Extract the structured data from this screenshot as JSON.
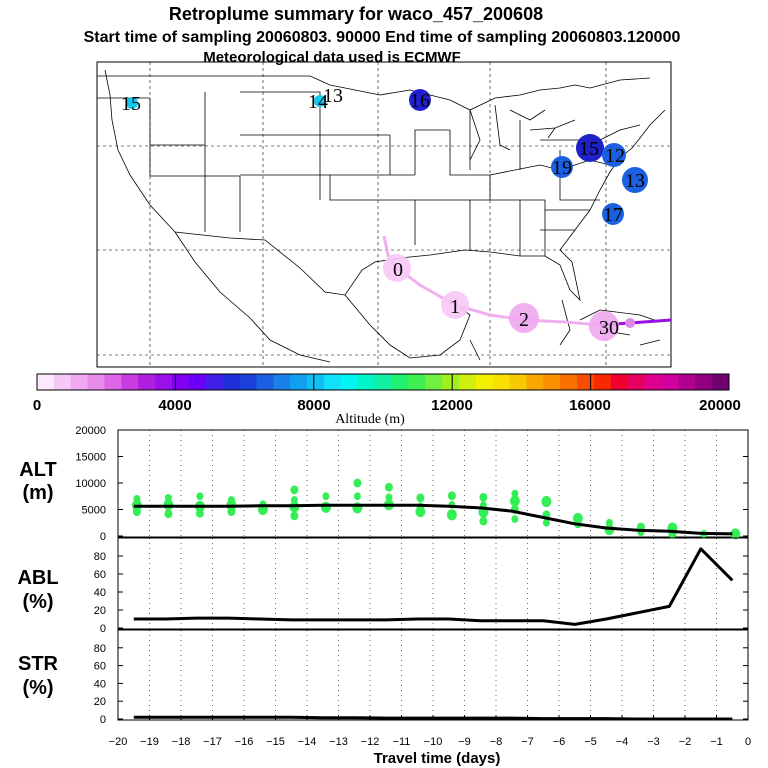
{
  "titles": {
    "line1": "Retroplume summary for waco_457_200608",
    "line2": "Start time of sampling 20060803. 90000     End time of sampling 20060803.120000",
    "line3": "Meteorological data used is ECMWF"
  },
  "colorbar": {
    "ticks": [
      "0",
      "4000",
      "8000",
      "12000",
      "16000",
      "20000"
    ],
    "label": "Altitude (m)",
    "colors": [
      "#fde8fd",
      "#f7c8f7",
      "#f0a8f0",
      "#e88be8",
      "#dd66e6",
      "#c93ce0",
      "#b01fe0",
      "#9a10e8",
      "#8000f0",
      "#6a00f5",
      "#4020e8",
      "#2030d8",
      "#1a40d8",
      "#1a60e0",
      "#1a80ea",
      "#10a0f0",
      "#10c0f5",
      "#10e0f8",
      "#00f5f0",
      "#00f5c8",
      "#10f0a0",
      "#20f070",
      "#40f050",
      "#70f040",
      "#a0f020",
      "#d0f010",
      "#f0f000",
      "#f8e000",
      "#f8c800",
      "#f8a800",
      "#f89000",
      "#f87000",
      "#f84c00",
      "#f82800",
      "#f00030",
      "#e80060",
      "#e00090",
      "#d000a0",
      "#b00090",
      "#900080",
      "#700070"
    ]
  },
  "map": {
    "track_labels": [
      "0",
      "1",
      "2",
      "3"
    ],
    "cluster_labels": [
      "15",
      "14",
      "13",
      "16",
      "19",
      "15",
      "12",
      "13",
      "17"
    ]
  },
  "chart_data": [
    {
      "type": "line",
      "panel": "ALT",
      "ylabel": "ALT\n(m)",
      "ylabel_line1": "ALT",
      "ylabel_line2": "(m)",
      "ylim": [
        0,
        20000
      ],
      "yticks": [
        "0",
        "5000",
        "10000",
        "15000",
        "20000"
      ],
      "x": [
        -19.5,
        -18.5,
        -17.5,
        -16.5,
        -15.5,
        -14.5,
        -13.5,
        -12.5,
        -11.5,
        -10.5,
        -9.5,
        -8.5,
        -7.5,
        -6.5,
        -5.5,
        -4.5,
        -3.5,
        -2.5,
        -1.5,
        -0.5
      ],
      "median": [
        5600,
        5600,
        5600,
        5600,
        5700,
        5700,
        5800,
        5800,
        5800,
        5800,
        5600,
        5300,
        4700,
        3500,
        2300,
        1500,
        1100,
        900,
        500,
        400
      ],
      "scatter_color": "#33ee55",
      "scatter": [
        [
          -19.4,
          7000
        ],
        [
          -19.4,
          5800
        ],
        [
          -19.4,
          4600
        ],
        [
          -18.4,
          7200
        ],
        [
          -18.4,
          5900
        ],
        [
          -18.4,
          4200
        ],
        [
          -17.4,
          7500
        ],
        [
          -17.4,
          5600
        ],
        [
          -17.4,
          4300
        ],
        [
          -16.4,
          6800
        ],
        [
          -16.4,
          5800
        ],
        [
          -16.4,
          4600
        ],
        [
          -15.4,
          6000
        ],
        [
          -15.4,
          5000
        ],
        [
          -14.4,
          8700
        ],
        [
          -14.4,
          6800
        ],
        [
          -14.4,
          5500
        ],
        [
          -14.4,
          3800
        ],
        [
          -13.4,
          7500
        ],
        [
          -13.4,
          5400
        ],
        [
          -12.4,
          10000
        ],
        [
          -12.4,
          7500
        ],
        [
          -12.4,
          5300
        ],
        [
          -11.4,
          9200
        ],
        [
          -11.4,
          7300
        ],
        [
          -11.4,
          5900
        ],
        [
          -10.4,
          7200
        ],
        [
          -10.4,
          5600
        ],
        [
          -10.4,
          4600
        ],
        [
          -9.4,
          7600
        ],
        [
          -9.4,
          5900
        ],
        [
          -9.4,
          4000
        ],
        [
          -8.4,
          7300
        ],
        [
          -8.4,
          5800
        ],
        [
          -8.4,
          4500
        ],
        [
          -8.4,
          2800
        ],
        [
          -7.4,
          8000
        ],
        [
          -7.4,
          6600
        ],
        [
          -7.4,
          5000
        ],
        [
          -7.4,
          3200
        ],
        [
          -6.4,
          6500
        ],
        [
          -6.4,
          4000
        ],
        [
          -6.4,
          2500
        ],
        [
          -5.4,
          3300
        ],
        [
          -5.4,
          2300
        ],
        [
          -4.4,
          2500
        ],
        [
          -4.4,
          1200
        ],
        [
          -3.4,
          1700
        ],
        [
          -3.4,
          700
        ],
        [
          -2.4,
          1500
        ],
        [
          -2.4,
          400
        ],
        [
          -1.4,
          400
        ],
        [
          -0.4,
          400
        ]
      ]
    },
    {
      "type": "line",
      "panel": "ABL",
      "ylabel": "ABL\n(%)",
      "ylabel_line1": "ABL",
      "ylabel_line2": "(%)",
      "ylim": [
        0,
        100
      ],
      "yticks": [
        "0",
        "20",
        "40",
        "60",
        "80"
      ],
      "x": [
        -19.5,
        -18.5,
        -17.5,
        -16.5,
        -15.5,
        -14.5,
        -13.5,
        -12.5,
        -11.5,
        -10.5,
        -9.5,
        -8.5,
        -7.5,
        -6.5,
        -5.5,
        -4.5,
        -3.5,
        -2.5,
        -1.5,
        -0.5
      ],
      "values": [
        10,
        10,
        11,
        11,
        10,
        9,
        9,
        9,
        9,
        10,
        10,
        8,
        8,
        8,
        4,
        10,
        17,
        24,
        88,
        53
      ]
    },
    {
      "type": "line",
      "panel": "STR",
      "ylabel": "STR\n(%)",
      "ylabel_line1": "STR",
      "ylabel_line2": "(%)",
      "ylim": [
        0,
        100
      ],
      "yticks": [
        "0",
        "20",
        "40",
        "60",
        "80"
      ],
      "xlabel": "Travel time (days)",
      "xlim": [
        -20,
        0
      ],
      "xticks": [
        "−20",
        "−19",
        "−18",
        "−17",
        "−16",
        "−15",
        "−14",
        "−13",
        "−12",
        "−11",
        "−10",
        "−9",
        "−8",
        "−7",
        "−6",
        "−5",
        "−4",
        "−3",
        "−2",
        "−1",
        "0"
      ],
      "x": [
        -19.5,
        -18.5,
        -17.5,
        -16.5,
        -15.5,
        -14.5,
        -13.5,
        -12.5,
        -11.5,
        -10.5,
        -9.5,
        -8.5,
        -7.5,
        -6.5,
        -5.5,
        -4.5,
        -3.5,
        -2.5,
        -1.5,
        -0.5
      ],
      "values": [
        2,
        2,
        2,
        2,
        2,
        2,
        1.5,
        1.5,
        1,
        1,
        1,
        1,
        1,
        0.5,
        0.5,
        0.5,
        0,
        0,
        0,
        0
      ]
    }
  ]
}
